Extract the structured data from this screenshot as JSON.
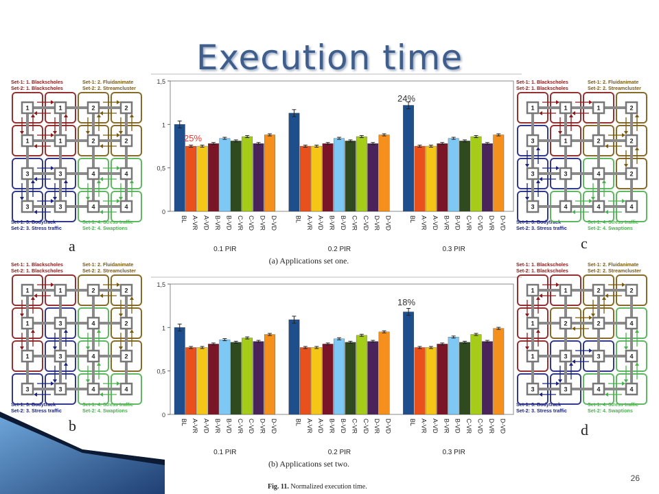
{
  "slide": {
    "title": "Execution time",
    "slide_number": "26",
    "fig_caption_bold": "Fig. 11.",
    "fig_caption_text": "Normalized execution time."
  },
  "panel_labels": {
    "a": "a",
    "b": "b",
    "c": "c",
    "d": "d"
  },
  "mapping_legends": {
    "a": {
      "tl": [
        "Set-1: 1. Blackscholes",
        "Set-2: 1. Blackscholes"
      ],
      "tr": [
        "Set-1: 2. Fluidanimate",
        "Set-2: 2. Streamcluster"
      ],
      "bl": [
        "Set-1: 3. Bodytrack",
        "Set-2: 3. Stress traffic"
      ],
      "br": [
        "Set-1: 4. Stress traffic",
        "Set-2: 4. Swaptions"
      ]
    },
    "b": {
      "tl": [
        "Set-1: 1. Blackscholes",
        "Set-2: 1. Blackscholes"
      ],
      "tr": [
        "Set-1: 2. Fluidanimate",
        "Set-2: 2. Streamcluster"
      ],
      "bl": [
        "Set-1: 3. Bodytrack",
        "Set-2: 3. Stress traffic"
      ],
      "br": [
        "Set-1: 4. Stress traffic",
        "Set-2: 4. Swaptions"
      ]
    },
    "c": {
      "tl": [
        "Set-1: 1. Blackscholes",
        "Set-2: 1. Blackscholes"
      ],
      "tr": [
        "Set-1: 2. Fluidanimate",
        "Set-2: 2. Streamcluster"
      ],
      "bl": [
        "Set-1: 3. Bodytrack",
        "Set-2: 3. Stress traffic"
      ],
      "br": [
        "Set-1: 4. Stress traffic",
        "Set-2: 4. Swaptions"
      ]
    },
    "d": {
      "tl": [
        "Set-1: 1. Blackscholes",
        "Set-2: 1. Blackscholes"
      ],
      "tr": [
        "Set-1: 2. Fluidanimate",
        "Set-2: 2. Streamcluster"
      ],
      "bl": [
        "Set-1: 3. Bodytrack",
        "Set-2: 3. Stress traffic"
      ],
      "br": [
        "Set-1: 4. Stress traffic",
        "Set-2: 4. Swaptions"
      ]
    }
  },
  "mesh": {
    "a": [
      [
        "1",
        "1",
        "2",
        "2"
      ],
      [
        "1",
        "1",
        "2",
        "2"
      ],
      [
        "3",
        "3",
        "4",
        "4"
      ],
      [
        "3",
        "3",
        "4",
        "4"
      ]
    ],
    "b": [
      [
        "1",
        "1",
        "2",
        "2"
      ],
      [
        "1",
        "3",
        "4",
        "2"
      ],
      [
        "1",
        "3",
        "4",
        "2"
      ],
      [
        "3",
        "3",
        "4",
        "4"
      ]
    ],
    "c": [
      [
        "1",
        "1",
        "1",
        "2"
      ],
      [
        "3",
        "1",
        "2",
        "2"
      ],
      [
        "3",
        "3",
        "4",
        "2"
      ],
      [
        "3",
        "4",
        "4",
        "4"
      ]
    ],
    "d": [
      [
        "1",
        "1",
        "2",
        "2"
      ],
      [
        "1",
        "2",
        "2",
        "4"
      ],
      [
        "1",
        "3",
        "3",
        "4"
      ],
      [
        "3",
        "3",
        "4",
        "4"
      ]
    ]
  },
  "colors": {
    "title": "#3f5e8c",
    "app1": "#8b1a1a",
    "app2": "#7a5a10",
    "app3": "#1a237e",
    "app4": "#4caf50",
    "annotation_red": "#e53935",
    "annotation_dark": "#333333"
  },
  "chart_data": [
    {
      "type": "bar",
      "caption": "(a) Applications set one.",
      "ylim": [
        0,
        1.5
      ],
      "yticks": [
        "0",
        "0,5",
        "1",
        "1,5"
      ],
      "bar_labels": [
        "BL",
        "A-VR",
        "A-VD",
        "B-VR",
        "B-VD",
        "C-VR",
        "C-VD",
        "D-VR",
        "D-VD"
      ],
      "bar_colors": [
        "#1f4e8c",
        "#e8501c",
        "#f5c518",
        "#7a1528",
        "#7ec8f5",
        "#2e4a1e",
        "#a6cc1a",
        "#4a235a",
        "#f5901c"
      ],
      "groups": [
        "0.1 PIR",
        "0.2 PIR",
        "0.3 PIR"
      ],
      "values": [
        [
          1.0,
          0.75,
          0.75,
          0.78,
          0.84,
          0.81,
          0.86,
          0.78,
          0.88
        ],
        [
          1.13,
          0.75,
          0.75,
          0.78,
          0.84,
          0.81,
          0.86,
          0.78,
          0.88
        ],
        [
          1.22,
          0.75,
          0.75,
          0.78,
          0.84,
          0.81,
          0.86,
          0.78,
          0.88
        ]
      ],
      "annotations": [
        "25%",
        "24%"
      ]
    },
    {
      "type": "bar",
      "caption": "(b) Applications set two.",
      "ylim": [
        0,
        1.5
      ],
      "yticks": [
        "0",
        "0,5",
        "1",
        "1,5"
      ],
      "bar_labels": [
        "BL",
        "A-VR",
        "A-VD",
        "B-VR",
        "B-VD",
        "C-VR",
        "C-VD",
        "D-VR",
        "D-VD"
      ],
      "bar_colors": [
        "#1f4e8c",
        "#e8501c",
        "#f5c518",
        "#7a1528",
        "#7ec8f5",
        "#2e4a1e",
        "#a6cc1a",
        "#4a235a",
        "#f5901c"
      ],
      "groups": [
        "0.1 PIR",
        "0.2 PIR",
        "0.3 PIR"
      ],
      "values": [
        [
          1.0,
          0.77,
          0.77,
          0.81,
          0.86,
          0.83,
          0.88,
          0.84,
          0.92
        ],
        [
          1.09,
          0.77,
          0.77,
          0.81,
          0.87,
          0.83,
          0.91,
          0.84,
          0.95
        ],
        [
          1.18,
          0.77,
          0.77,
          0.81,
          0.89,
          0.83,
          0.92,
          0.84,
          0.99
        ]
      ],
      "annotations": [
        "18%"
      ]
    }
  ]
}
